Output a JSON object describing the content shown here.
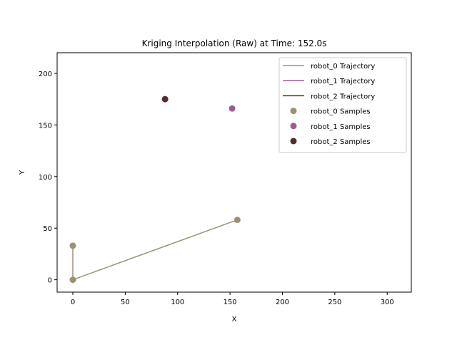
{
  "chart_data": {
    "type": "scatter",
    "title": "Kriging Interpolation (Raw) at Time: 152.0s",
    "xlabel": "X",
    "ylabel": "Y",
    "xlim": [
      -15,
      323
    ],
    "ylim": [
      -12,
      220
    ],
    "xticks": [
      0,
      50,
      100,
      150,
      200,
      250,
      300
    ],
    "yticks": [
      0,
      50,
      100,
      150,
      200
    ],
    "grid": false,
    "legend_position": "top-right",
    "series": [
      {
        "name": "robot_0 Trajectory",
        "kind": "line",
        "color": "#9a9373",
        "points": [
          [
            0,
            33
          ],
          [
            0,
            0
          ],
          [
            157,
            58
          ]
        ]
      },
      {
        "name": "robot_1 Trajectory",
        "kind": "line",
        "color": "#9e5b92",
        "points": [
          [
            152,
            166
          ]
        ]
      },
      {
        "name": "robot_2 Trajectory",
        "kind": "line",
        "color": "#4d2f30",
        "points": [
          [
            88,
            175
          ]
        ]
      },
      {
        "name": "robot_0 Samples",
        "kind": "scatter",
        "color": "#9a9373",
        "points": [
          [
            0,
            33
          ],
          [
            0,
            0
          ],
          [
            157,
            58
          ]
        ]
      },
      {
        "name": "robot_1 Samples",
        "kind": "scatter",
        "color": "#9e5b92",
        "points": [
          [
            152,
            166
          ]
        ]
      },
      {
        "name": "robot_2 Samples",
        "kind": "scatter",
        "color": "#4d2f30",
        "points": [
          [
            88,
            175
          ]
        ]
      }
    ]
  }
}
